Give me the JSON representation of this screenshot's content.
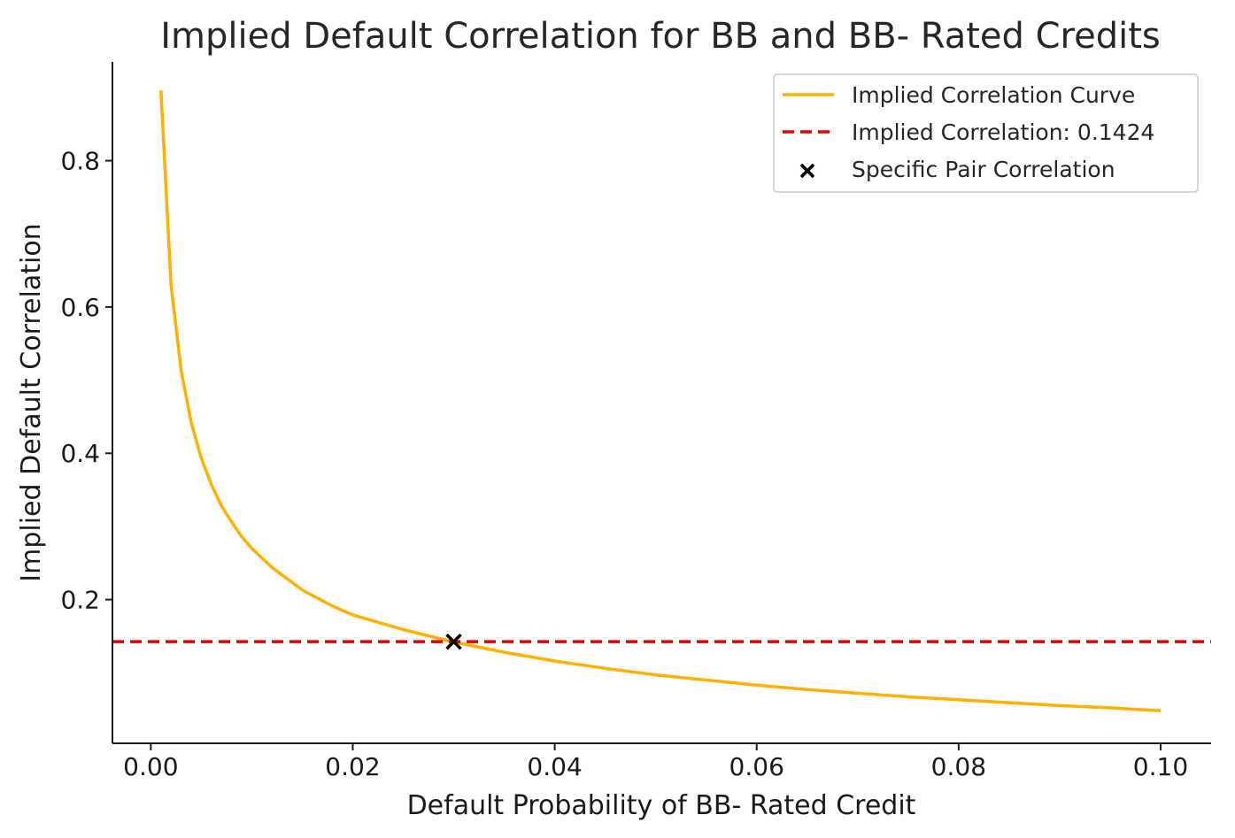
{
  "chart_data": {
    "type": "line",
    "title": "Implied Default Correlation for BB and BB- Rated Credits",
    "xlabel": "Default Probability of BB- Rated Credit",
    "ylabel": "Implied Default Correlation",
    "xlim": [
      -0.0038,
      0.105
    ],
    "ylim": [
      0.0035,
      0.935
    ],
    "xticks": [
      0.0,
      0.02,
      0.04,
      0.06,
      0.08,
      0.1
    ],
    "xtick_labels": [
      "0.00",
      "0.02",
      "0.04",
      "0.06",
      "0.08",
      "0.10"
    ],
    "yticks": [
      0.2,
      0.4,
      0.6,
      0.8
    ],
    "ytick_labels": [
      "0.2",
      "0.4",
      "0.6",
      "0.8"
    ],
    "grid": false,
    "legend_position": "top-right",
    "series": [
      {
        "name": "Implied Correlation Curve",
        "kind": "line",
        "color": "#FFB000",
        "x": [
          0.001,
          0.002,
          0.003,
          0.004,
          0.005,
          0.006,
          0.007,
          0.008,
          0.009,
          0.01,
          0.012,
          0.015,
          0.018,
          0.02,
          0.025,
          0.03,
          0.035,
          0.04,
          0.045,
          0.05,
          0.055,
          0.06,
          0.065,
          0.07,
          0.075,
          0.08,
          0.085,
          0.09,
          0.095,
          0.1
        ],
        "y": [
          0.896,
          0.63,
          0.513,
          0.442,
          0.393,
          0.357,
          0.328,
          0.306,
          0.286,
          0.27,
          0.244,
          0.213,
          0.191,
          0.179,
          0.159,
          0.142,
          0.128,
          0.116,
          0.106,
          0.097,
          0.09,
          0.083,
          0.077,
          0.072,
          0.067,
          0.063,
          0.059,
          0.055,
          0.052,
          0.048
        ]
      },
      {
        "name": "Implied Correlation: 0.1424",
        "kind": "hline",
        "color": "#E00000",
        "y": 0.1424
      },
      {
        "name": "Specific Pair Correlation",
        "kind": "marker",
        "color": "#000000",
        "x": [
          0.03
        ],
        "y": [
          0.1424
        ]
      }
    ]
  }
}
